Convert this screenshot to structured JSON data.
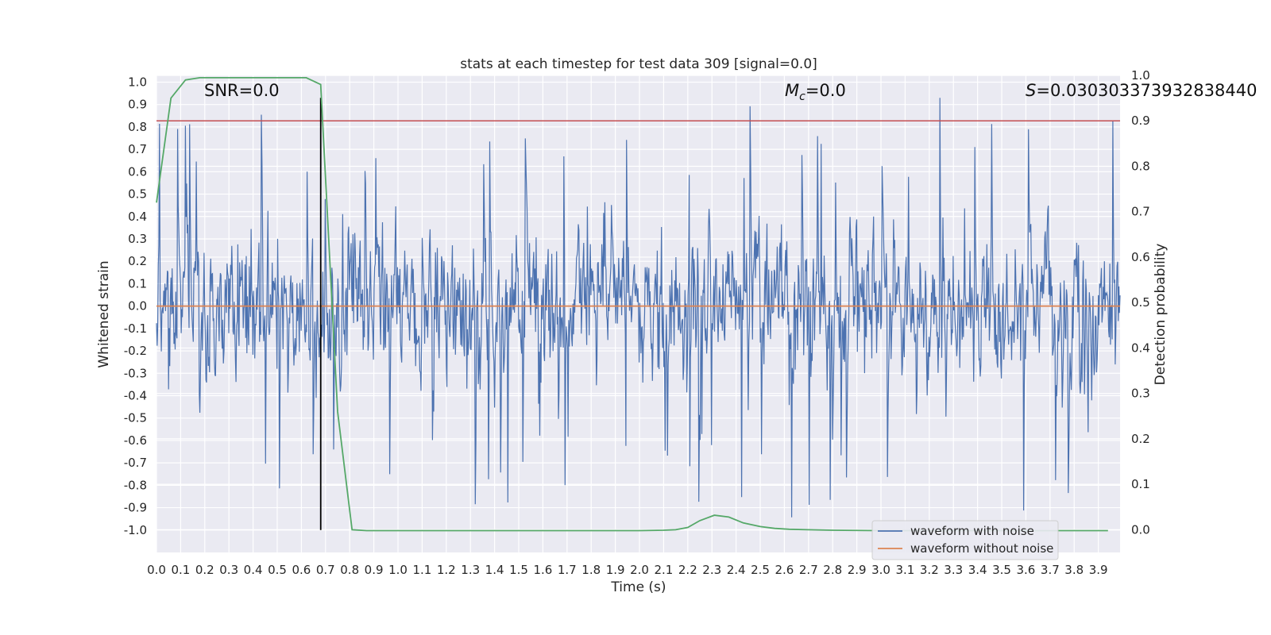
{
  "chart_data": {
    "type": "line",
    "title": "stats at each timestep for test data 309 [signal=0.0]",
    "xlabel": "Time (s)",
    "ylabel": "Whitened strain",
    "y2label": "Detection probability",
    "xlim": [
      0.0,
      3.99
    ],
    "ylim": [
      -1.1,
      1.03
    ],
    "y2lim": [
      -0.05,
      1.0
    ],
    "x_ticks": [
      0.0,
      0.1,
      0.2,
      0.3,
      0.4,
      0.5,
      0.6,
      0.7,
      0.8,
      0.9,
      1.0,
      1.1,
      1.2,
      1.3,
      1.4,
      1.5,
      1.6,
      1.7,
      1.8,
      1.9,
      2.0,
      2.1,
      2.2,
      2.3,
      2.4,
      2.5,
      2.6,
      2.7,
      2.8,
      2.9,
      3.0,
      3.1,
      3.2,
      3.3,
      3.4,
      3.5,
      3.6,
      3.7,
      3.8,
      3.9
    ],
    "y_ticks": [
      1.0,
      0.9,
      0.8,
      0.7,
      0.6,
      0.5,
      0.4,
      0.3,
      0.2,
      0.1,
      0.0,
      -0.1,
      -0.2,
      -0.3,
      -0.4,
      -0.5,
      -0.6,
      -0.7,
      -0.8,
      -0.9,
      -1.0
    ],
    "y2_ticks": [
      0.0,
      0.1,
      0.2,
      0.3,
      0.4,
      0.5,
      0.6,
      0.7,
      0.8,
      0.9,
      1.0
    ],
    "grid": true,
    "legend_position": "bottom-right",
    "series": [
      {
        "name": "waveform with noise",
        "color": "#4c72b0",
        "axis": "left",
        "description": "dense whitened noise, roughly within -0.95 to 0.93",
        "amplitude_range": [
          -0.95,
          0.93
        ],
        "num_samples": 1600
      },
      {
        "name": "waveform without noise",
        "color": "#dd8452",
        "axis": "left",
        "x": [
          0.0,
          3.99
        ],
        "y": [
          0.0,
          0.0
        ]
      },
      {
        "name": "detection probability",
        "color": "#55a868",
        "axis": "right",
        "in_legend": false,
        "x": [
          0.0,
          0.06,
          0.12,
          0.18,
          0.25,
          0.31,
          0.37,
          0.43,
          0.5,
          0.56,
          0.62,
          0.68,
          0.75,
          0.81,
          0.87,
          1.0,
          1.5,
          2.0,
          2.1,
          2.15,
          2.2,
          2.25,
          2.31,
          2.37,
          2.43,
          2.5,
          2.56,
          2.62,
          2.7,
          2.8,
          3.0,
          3.5,
          3.94
        ],
        "y": [
          0.72,
          0.95,
          0.99,
          0.995,
          0.995,
          0.995,
          0.995,
          0.995,
          0.995,
          0.995,
          0.995,
          0.98,
          0.26,
          0.0,
          -0.002,
          -0.002,
          -0.002,
          -0.002,
          -0.001,
          0.0,
          0.005,
          0.02,
          0.032,
          0.028,
          0.015,
          0.007,
          0.003,
          0.001,
          0.0,
          -0.001,
          -0.002,
          -0.002,
          -0.002
        ]
      }
    ],
    "threshold": {
      "value": 0.9,
      "axis": "right",
      "color": "#c44e52"
    },
    "marker_line": {
      "x": 0.68,
      "y_from": -1.0,
      "y_to": 0.93,
      "color": "#000000"
    },
    "annotations": [
      {
        "label": "SNR=0.0",
        "x": 0.2,
        "y": 0.95
      },
      {
        "label": "=0.0",
        "symbol": "M",
        "subscript": "c",
        "x": 2.6,
        "y": 0.95
      },
      {
        "label": "=0.030303373932838440",
        "symbol": "S",
        "x": 3.6,
        "y": 0.95
      }
    ]
  }
}
